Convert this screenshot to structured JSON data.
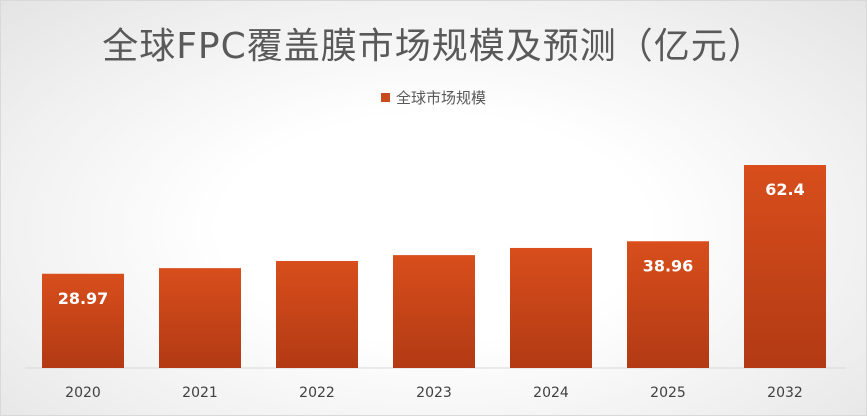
{
  "chart_data": {
    "type": "bar",
    "title": "全球FPC覆盖膜市场规模及预测（亿元）",
    "legend": "全球市场规模",
    "legend_position": "top",
    "categories": [
      "2020",
      "2021",
      "2022",
      "2023",
      "2024",
      "2025",
      "2032"
    ],
    "series": [
      {
        "name": "全球市场规模",
        "values": [
          28.97,
          30.7,
          32.9,
          34.7,
          36.9,
          38.96,
          62.4
        ],
        "labels": [
          "28.97",
          "",
          "",
          "",
          "",
          "38.96",
          "62.4"
        ]
      }
    ],
    "ylim": [
      0,
      62.4
    ],
    "grid": false,
    "bar_color": "#c94a1c"
  }
}
